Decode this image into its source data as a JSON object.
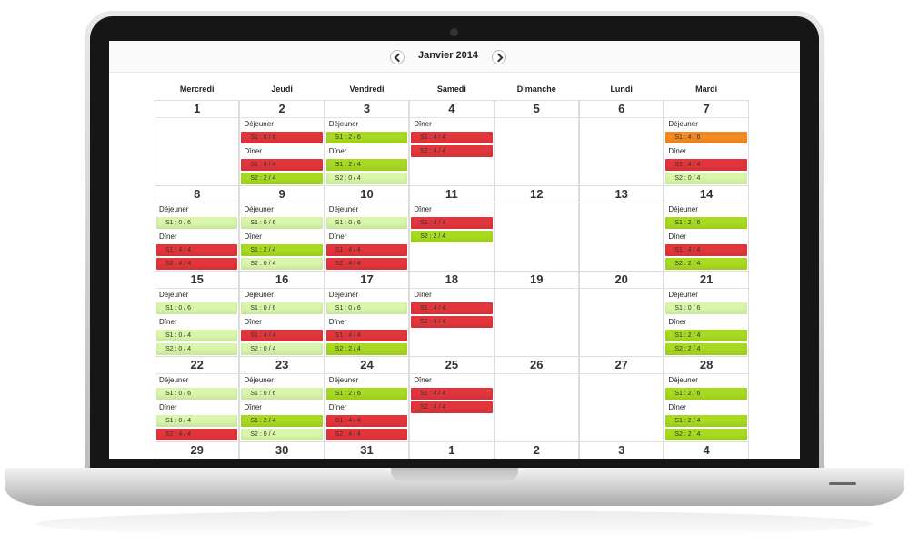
{
  "header": {
    "title": "Janvier 2014"
  },
  "weekdays": [
    "Mercredi",
    "Jeudi",
    "Vendredi",
    "Samedi",
    "Dimanche",
    "Lundi",
    "Mardi"
  ],
  "weeks": [
    {
      "days": [
        {
          "day": "1",
          "meals": []
        },
        {
          "day": "2",
          "meals": [
            {
              "label": "Déjeuner",
              "slots": [
                {
                  "text": "S1 : 6 / 6",
                  "color": "#e2363c"
                }
              ]
            },
            {
              "label": "Dîner",
              "slots": [
                {
                  "text": "S1 : 4 / 4",
                  "color": "#e2363c"
                },
                {
                  "text": "S2 : 2 / 4",
                  "color": "#a8da22"
                }
              ]
            }
          ]
        },
        {
          "day": "3",
          "meals": [
            {
              "label": "Déjeuner",
              "slots": [
                {
                  "text": "S1 : 2 / 6",
                  "color": "#a8da22"
                }
              ]
            },
            {
              "label": "Dîner",
              "slots": [
                {
                  "text": "S1 : 2 / 4",
                  "color": "#a8da22"
                },
                {
                  "text": "S2 : 0 / 4",
                  "color": "#d9f6ab"
                }
              ]
            }
          ]
        },
        {
          "day": "4",
          "meals": [
            {
              "label": "Dîner",
              "slots": [
                {
                  "text": "S1 : 4 / 4",
                  "color": "#e2363c"
                },
                {
                  "text": "S2 : 4 / 4",
                  "color": "#e2363c"
                }
              ]
            }
          ]
        },
        {
          "day": "5",
          "meals": []
        },
        {
          "day": "6",
          "meals": []
        },
        {
          "day": "7",
          "meals": [
            {
              "label": "Déjeuner",
              "slots": [
                {
                  "text": "S1 : 4 / 6",
                  "color": "#f48a24"
                }
              ]
            },
            {
              "label": "Dîner",
              "slots": [
                {
                  "text": "S1 : 4 / 4",
                  "color": "#e2363c"
                },
                {
                  "text": "S2 : 0 / 4",
                  "color": "#d9f6ab"
                }
              ]
            }
          ]
        }
      ]
    },
    {
      "days": [
        {
          "day": "8",
          "meals": [
            {
              "label": "Déjeuner",
              "slots": [
                {
                  "text": "S1 : 0 / 6",
                  "color": "#d9f6ab"
                }
              ]
            },
            {
              "label": "Dîner",
              "slots": [
                {
                  "text": "S1 : 4 / 4",
                  "color": "#e2363c"
                },
                {
                  "text": "S2 : 4 / 4",
                  "color": "#e2363c"
                }
              ]
            }
          ]
        },
        {
          "day": "9",
          "meals": [
            {
              "label": "Déjeuner",
              "slots": [
                {
                  "text": "S1 : 0 / 6",
                  "color": "#d9f6ab"
                }
              ]
            },
            {
              "label": "Dîner",
              "slots": [
                {
                  "text": "S1 : 2 / 4",
                  "color": "#a8da22"
                },
                {
                  "text": "S2 : 0 / 4",
                  "color": "#d9f6ab"
                }
              ]
            }
          ]
        },
        {
          "day": "10",
          "meals": [
            {
              "label": "Déjeuner",
              "slots": [
                {
                  "text": "S1 : 0 / 6",
                  "color": "#d9f6ab"
                }
              ]
            },
            {
              "label": "Dîner",
              "slots": [
                {
                  "text": "S1 : 4 / 4",
                  "color": "#e2363c"
                },
                {
                  "text": "S2 : 4 / 4",
                  "color": "#e2363c"
                }
              ]
            }
          ]
        },
        {
          "day": "11",
          "meals": [
            {
              "label": "Dîner",
              "slots": [
                {
                  "text": "S1 : 4 / 4",
                  "color": "#e2363c"
                },
                {
                  "text": "S2 : 2 / 4",
                  "color": "#a8da22"
                }
              ]
            }
          ]
        },
        {
          "day": "12",
          "meals": []
        },
        {
          "day": "13",
          "meals": []
        },
        {
          "day": "14",
          "meals": [
            {
              "label": "Déjeuner",
              "slots": [
                {
                  "text": "S1 : 2 / 6",
                  "color": "#a8da22"
                }
              ]
            },
            {
              "label": "Dîner",
              "slots": [
                {
                  "text": "S1 : 4 / 4",
                  "color": "#e2363c"
                },
                {
                  "text": "S2 : 2 / 4",
                  "color": "#a8da22"
                }
              ]
            }
          ]
        }
      ]
    },
    {
      "days": [
        {
          "day": "15",
          "meals": [
            {
              "label": "Déjeuner",
              "slots": [
                {
                  "text": "S1 : 0 / 6",
                  "color": "#d9f6ab"
                }
              ]
            },
            {
              "label": "Dîner",
              "slots": [
                {
                  "text": "S1 : 0 / 4",
                  "color": "#d9f6ab"
                },
                {
                  "text": "S2 : 0 / 4",
                  "color": "#d9f6ab"
                }
              ]
            }
          ]
        },
        {
          "day": "16",
          "meals": [
            {
              "label": "Déjeuner",
              "slots": [
                {
                  "text": "S1 : 0 / 6",
                  "color": "#d9f6ab"
                }
              ]
            },
            {
              "label": "Dîner",
              "slots": [
                {
                  "text": "S1 : 4 / 4",
                  "color": "#e2363c"
                },
                {
                  "text": "S2 : 0 / 4",
                  "color": "#d9f6ab"
                }
              ]
            }
          ]
        },
        {
          "day": "17",
          "meals": [
            {
              "label": "Déjeuner",
              "slots": [
                {
                  "text": "S1 : 0 / 6",
                  "color": "#d9f6ab"
                }
              ]
            },
            {
              "label": "Dîner",
              "slots": [
                {
                  "text": "S1 : 4 / 4",
                  "color": "#e2363c"
                },
                {
                  "text": "S2 : 2 / 4",
                  "color": "#a8da22"
                }
              ]
            }
          ]
        },
        {
          "day": "18",
          "meals": [
            {
              "label": "Dîner",
              "slots": [
                {
                  "text": "S1 : 4 / 4",
                  "color": "#e2363c"
                },
                {
                  "text": "S2 : 4 / 4",
                  "color": "#e2363c"
                }
              ]
            }
          ]
        },
        {
          "day": "19",
          "meals": []
        },
        {
          "day": "20",
          "meals": []
        },
        {
          "day": "21",
          "meals": [
            {
              "label": "Déjeuner",
              "slots": [
                {
                  "text": "S1 : 0 / 6",
                  "color": "#d9f6ab"
                }
              ]
            },
            {
              "label": "Dîner",
              "slots": [
                {
                  "text": "S1 : 2 / 4",
                  "color": "#a8da22"
                },
                {
                  "text": "S2 : 2 / 4",
                  "color": "#a8da22"
                }
              ]
            }
          ]
        }
      ]
    },
    {
      "days": [
        {
          "day": "22",
          "meals": [
            {
              "label": "Déjeuner",
              "slots": [
                {
                  "text": "S1 : 0 / 6",
                  "color": "#d9f6ab"
                }
              ]
            },
            {
              "label": "Dîner",
              "slots": [
                {
                  "text": "S1 : 0 / 4",
                  "color": "#d9f6ab"
                },
                {
                  "text": "S2 : 4 / 4",
                  "color": "#e2363c"
                }
              ]
            }
          ]
        },
        {
          "day": "23",
          "meals": [
            {
              "label": "Déjeuner",
              "slots": [
                {
                  "text": "S1 : 0 / 6",
                  "color": "#d9f6ab"
                }
              ]
            },
            {
              "label": "Dîner",
              "slots": [
                {
                  "text": "S1 : 2 / 4",
                  "color": "#a8da22"
                },
                {
                  "text": "S2 : 0 / 4",
                  "color": "#d9f6ab"
                }
              ]
            }
          ]
        },
        {
          "day": "24",
          "meals": [
            {
              "label": "Déjeuner",
              "slots": [
                {
                  "text": "S1 : 2 / 6",
                  "color": "#a8da22"
                }
              ]
            },
            {
              "label": "Dîner",
              "slots": [
                {
                  "text": "S1 : 4 / 4",
                  "color": "#e2363c"
                },
                {
                  "text": "S2 : 4 / 4",
                  "color": "#e2363c"
                }
              ]
            }
          ]
        },
        {
          "day": "25",
          "meals": [
            {
              "label": "Dîner",
              "slots": [
                {
                  "text": "S1 : 4 / 4",
                  "color": "#e2363c"
                },
                {
                  "text": "S2 : 4 / 4",
                  "color": "#e2363c"
                }
              ]
            }
          ]
        },
        {
          "day": "26",
          "meals": []
        },
        {
          "day": "27",
          "meals": []
        },
        {
          "day": "28",
          "meals": [
            {
              "label": "Déjeuner",
              "slots": [
                {
                  "text": "S1 : 2 / 6",
                  "color": "#a8da22"
                }
              ]
            },
            {
              "label": "Dîner",
              "slots": [
                {
                  "text": "S1 : 2 / 4",
                  "color": "#a8da22"
                },
                {
                  "text": "S2 : 2 / 4",
                  "color": "#a8da22"
                }
              ]
            }
          ]
        }
      ]
    },
    {
      "days": [
        {
          "day": "29",
          "meals": []
        },
        {
          "day": "30",
          "meals": []
        },
        {
          "day": "31",
          "meals": []
        },
        {
          "day": "1",
          "meals": []
        },
        {
          "day": "2",
          "meals": []
        },
        {
          "day": "3",
          "meals": []
        },
        {
          "day": "4",
          "meals": []
        }
      ]
    }
  ]
}
